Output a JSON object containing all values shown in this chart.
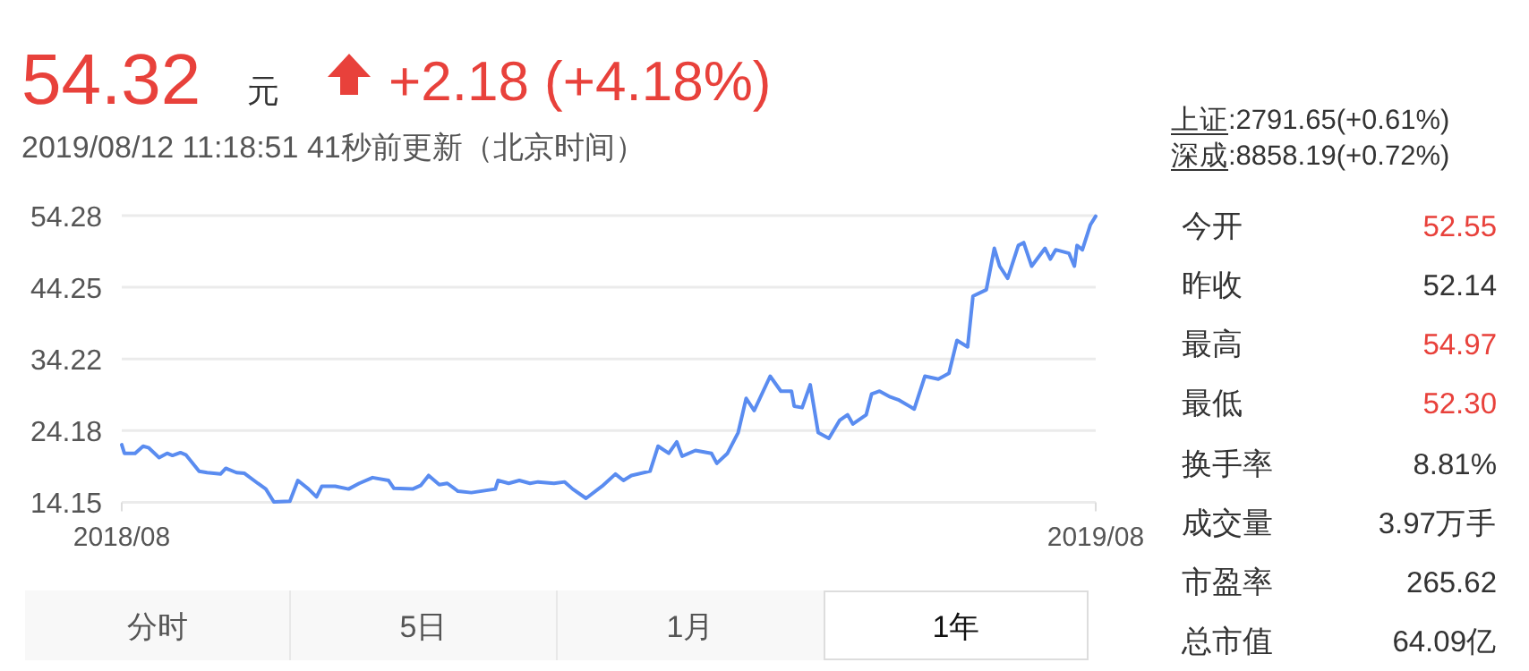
{
  "chart_data": {
    "type": "line",
    "x": [
      "2018-08-12",
      "2018-08-13",
      "2018-08-17",
      "2018-08-20",
      "2018-08-22",
      "2018-08-26",
      "2018-08-29",
      "2018-08-31",
      "2018-09-03",
      "2018-09-05",
      "2018-09-10",
      "2018-09-13",
      "2018-09-18",
      "2018-09-20",
      "2018-09-24",
      "2018-09-27",
      "2018-10-02",
      "2018-10-05",
      "2018-10-08",
      "2018-10-14",
      "2018-10-17",
      "2018-10-21",
      "2018-10-24",
      "2018-10-26",
      "2018-10-31",
      "2018-11-05",
      "2018-11-09",
      "2018-11-14",
      "2018-11-20",
      "2018-11-22",
      "2018-11-29",
      "2018-12-02",
      "2018-12-05",
      "2018-12-09",
      "2018-12-12",
      "2018-12-16",
      "2018-12-21",
      "2018-12-30",
      "2018-12-31",
      "2019-01-04",
      "2019-01-08",
      "2019-01-12",
      "2019-01-15",
      "2019-01-21",
      "2019-01-25",
      "2019-01-28",
      "2019-02-02",
      "2019-02-08",
      "2019-02-13",
      "2019-02-16",
      "2019-02-19",
      "2019-02-26",
      "2019-03-01",
      "2019-03-05",
      "2019-03-08",
      "2019-03-10",
      "2019-03-15",
      "2019-03-21",
      "2019-03-23",
      "2019-03-27",
      "2019-03-31",
      "2019-04-03",
      "2019-04-06",
      "2019-04-12",
      "2019-04-16",
      "2019-04-20",
      "2019-04-21",
      "2019-04-24",
      "2019-04-27",
      "2019-04-30",
      "2019-05-04",
      "2019-05-08",
      "2019-05-11",
      "2019-05-13",
      "2019-05-18",
      "2019-05-20",
      "2019-05-23",
      "2019-05-27",
      "2019-05-30",
      "2019-06-05",
      "2019-06-09",
      "2019-06-14",
      "2019-06-18",
      "2019-06-21",
      "2019-06-25",
      "2019-06-27",
      "2019-07-02",
      "2019-07-05",
      "2019-07-07",
      "2019-07-10",
      "2019-07-14",
      "2019-07-16",
      "2019-07-19",
      "2019-07-24",
      "2019-07-26",
      "2019-07-28",
      "2019-08-02",
      "2019-08-04",
      "2019-08-05",
      "2019-08-07",
      "2019-08-10",
      "2019-08-12"
    ],
    "series": [
      {
        "color": "#5a8cf0",
        "values": [
          22.2,
          21.0,
          21.0,
          22.0,
          21.8,
          20.4,
          21.0,
          20.7,
          21.1,
          20.8,
          18.5,
          18.3,
          18.1,
          18.9,
          18.3,
          18.2,
          16.8,
          16.0,
          14.2,
          14.3,
          17.2,
          16.0,
          14.9,
          16.4,
          16.4,
          16.0,
          16.8,
          17.6,
          17.2,
          16.1,
          16.0,
          16.5,
          17.9,
          16.6,
          16.8,
          15.7,
          15.5,
          16.0,
          17.2,
          16.8,
          17.2,
          16.8,
          17.0,
          16.8,
          17.0,
          16.0,
          14.7,
          16.4,
          18.1,
          17.2,
          17.9,
          18.5,
          22.0,
          21.0,
          22.6,
          20.6,
          21.4,
          21.0,
          19.6,
          21.0,
          23.9,
          28.7,
          27.0,
          31.8,
          29.7,
          29.7,
          27.6,
          27.4,
          30.6,
          23.9,
          23.1,
          25.6,
          26.4,
          25.1,
          26.4,
          29.3,
          29.7,
          28.9,
          28.5,
          27.2,
          31.8,
          31.4,
          32.2,
          36.8,
          35.9,
          43.0,
          43.9,
          49.7,
          47.2,
          45.5,
          50.1,
          50.5,
          47.2,
          49.7,
          48.2,
          49.5,
          49.0,
          47.2,
          50.1,
          49.5,
          53.0,
          54.2
        ]
      }
    ],
    "xlim": [
      "2018-08-12",
      "2019-08-12"
    ],
    "xticks": [
      {
        "value": "2018-08-12",
        "label": "2018/08"
      },
      {
        "value": "2019-08-12",
        "label": "2019/08"
      }
    ],
    "ylim": [
      14.15,
      54.28
    ],
    "yticks": [
      14.15,
      24.18,
      34.22,
      44.25,
      54.28
    ],
    "grid": "y",
    "marker": "none",
    "line_style": "solid",
    "annotations": [
      "54.32",
      "元",
      "+2.18 (+4.18%)",
      "2019/08/12 11:18:51  41秒前更新（北京时间）",
      "上证:2791.65(+0.61%)",
      "深成:8858.19(+0.72%)",
      "今开",
      "昨收",
      "最高",
      "最低",
      "换手率",
      "成交量",
      "市盈率",
      "总市值",
      "52.55",
      "52.14",
      "54.97",
      "52.30",
      "8.81%",
      "3.97万手",
      "265.62",
      "64.09亿",
      "分时",
      "5日",
      "1月",
      "1年"
    ]
  }
}
